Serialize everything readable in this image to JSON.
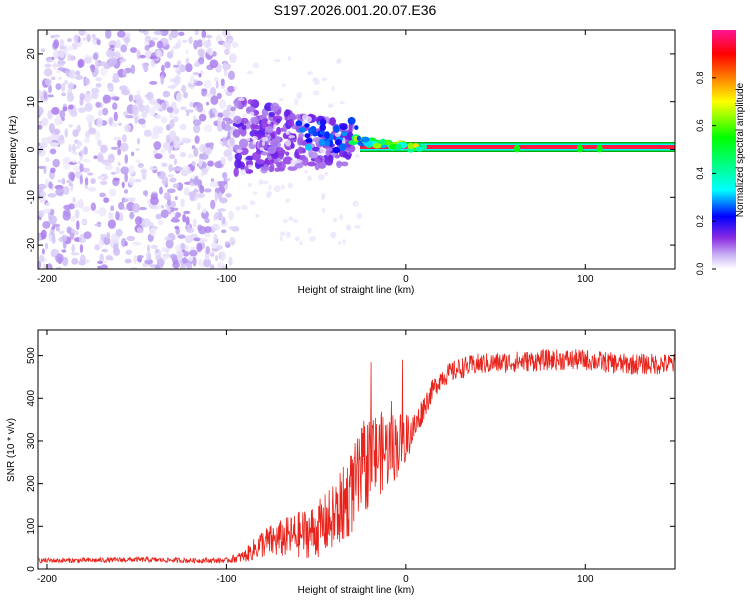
{
  "figure_title": "S197.2026.001.20.07.E36",
  "chart_data": [
    {
      "type": "heatmap",
      "title": "S197.2026.001.20.07.E36",
      "xlabel": "Height of straight line (km)",
      "ylabel": "Frequency (Hz)",
      "xlim": [
        -205,
        150
      ],
      "ylim": [
        -25,
        25
      ],
      "x_ticks": [
        -200,
        -100,
        0,
        100
      ],
      "x_tick_labels": [
        "-200",
        "-100",
        "0",
        "100"
      ],
      "y_ticks": [
        -20,
        -10,
        0,
        10,
        20
      ],
      "y_tick_labels": [
        "-20",
        "-10",
        "0",
        "10",
        "20"
      ],
      "colorbar": {
        "label": "Normalized spectral amplitude",
        "range": [
          0,
          1
        ],
        "ticks": [
          0.0,
          0.2,
          0.4,
          0.6,
          0.8
        ],
        "tick_labels": [
          "0.0",
          "0.2",
          "0.4",
          "0.6",
          "0.8"
        ],
        "colormap": [
          "#ffffff",
          "#b9a0f0",
          "#8a2be2",
          "#0000ff",
          "#00ffff",
          "#00ff00",
          "#ffff00",
          "#ff8000",
          "#ff0000",
          "#ff1493"
        ]
      },
      "features": [
        {
          "name": "scattered noise",
          "x_range": [
            -205,
            -95
          ],
          "y_range": [
            -25,
            25
          ],
          "amplitude": 0.1
        },
        {
          "name": "noise transition",
          "x_range": [
            -95,
            -30
          ],
          "y_range": [
            -8,
            10
          ],
          "amplitude": 0.25
        },
        {
          "name": "signal onset",
          "x_range": [
            -30,
            10
          ],
          "y_range": [
            -1,
            3
          ],
          "amplitude": 0.55
        },
        {
          "name": "carrier tone",
          "x_range": [
            10,
            150
          ],
          "y_center": 0.2,
          "amplitude": 0.95
        }
      ]
    },
    {
      "type": "line",
      "xlabel": "Height of straight line (km)",
      "ylabel": "SNR (10 * v/v)",
      "xlim": [
        -205,
        150
      ],
      "ylim": [
        0,
        560
      ],
      "x_ticks": [
        -200,
        -100,
        0,
        100
      ],
      "x_tick_labels": [
        "-200",
        "-100",
        "0",
        "100"
      ],
      "y_ticks": [
        0,
        100,
        200,
        300,
        400,
        500
      ],
      "y_tick_labels": [
        "0",
        "100",
        "200",
        "300",
        "400",
        "500"
      ],
      "series": [
        {
          "name": "SNR",
          "color": "#e8231b",
          "x": [
            -205,
            -180,
            -150,
            -120,
            -100,
            -90,
            -80,
            -70,
            -60,
            -50,
            -40,
            -30,
            -25,
            -20,
            -15,
            -10,
            -5,
            0,
            5,
            10,
            15,
            20,
            30,
            40,
            60,
            80,
            100,
            120,
            150
          ],
          "y": [
            20,
            20,
            22,
            20,
            20,
            30,
            60,
            70,
            80,
            90,
            120,
            180,
            220,
            260,
            270,
            280,
            290,
            310,
            330,
            380,
            420,
            450,
            470,
            480,
            485,
            490,
            490,
            480,
            480
          ],
          "noise_amplitude": [
            6,
            6,
            6,
            6,
            6,
            15,
            35,
            45,
            55,
            65,
            80,
            100,
            110,
            110,
            100,
            90,
            80,
            60,
            40,
            30,
            25,
            25,
            25,
            25,
            25,
            25,
            25,
            25,
            25
          ]
        }
      ]
    }
  ]
}
